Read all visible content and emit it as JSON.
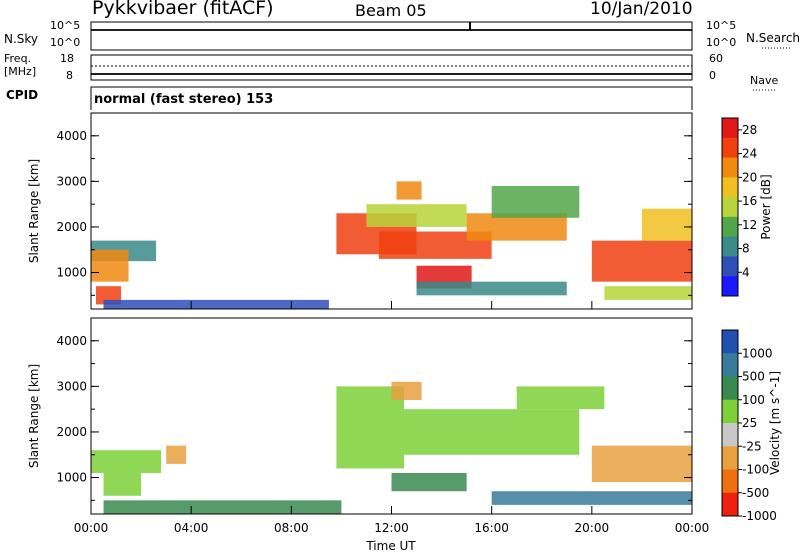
{
  "header": {
    "station": "Pykkvibaer (fitACF)",
    "beam": "Beam 05",
    "date": "10/Jan/2010"
  },
  "strips": {
    "nsky_label": "N.Sky",
    "nsky_ticks": [
      "10^5",
      "10^0"
    ],
    "nsearch_label": "N.Search",
    "nsearch_ticks": [
      "10^5",
      "10^0"
    ],
    "freq_label_line1": "Freq.",
    "freq_label_line2": "[MHz]",
    "freq_ticks": [
      "18",
      "8"
    ],
    "nave_label": "Nave",
    "nave_ticks": [
      "60",
      "0"
    ],
    "cpid_label": "CPID",
    "cpid_text": "normal (fast stereo) 153"
  },
  "chart_data": [
    {
      "type": "heatmap",
      "title": "",
      "xlabel": "Time UT",
      "ylabel": "Slant Range [km]",
      "xticks": [
        "00:00",
        "04:00",
        "08:00",
        "12:00",
        "16:00",
        "20:00",
        "00:00"
      ],
      "yticks": [
        "1000",
        "2000",
        "3000",
        "4000"
      ],
      "ylim": [
        200,
        4500
      ],
      "xlim_hours": [
        0,
        24
      ],
      "colorbar": {
        "label": "Power [dB]",
        "ticks": [
          "4",
          "8",
          "12",
          "16",
          "20",
          "24",
          "28"
        ],
        "range": [
          0,
          30
        ],
        "colors": [
          "#1a1aff",
          "#2e4fb8",
          "#3a8a8a",
          "#52a64a",
          "#b8d43a",
          "#f0c020",
          "#f08a10",
          "#f04010",
          "#e01818"
        ]
      },
      "regions": [
        {
          "t0": 0.0,
          "t1": 2.6,
          "r0": 1250,
          "r1": 1700,
          "value": 8
        },
        {
          "t0": 0.0,
          "t1": 1.5,
          "r0": 800,
          "r1": 1500,
          "value": 20
        },
        {
          "t0": 0.2,
          "t1": 1.2,
          "r0": 300,
          "r1": 700,
          "value": 26
        },
        {
          "t0": 0.5,
          "t1": 9.5,
          "r0": 200,
          "r1": 400,
          "value": 6
        },
        {
          "t0": 9.8,
          "t1": 13.0,
          "r0": 1400,
          "r1": 2300,
          "value": 26
        },
        {
          "t0": 11.5,
          "t1": 16.0,
          "r0": 1300,
          "r1": 1900,
          "value": 24
        },
        {
          "t0": 11.0,
          "t1": 15.0,
          "r0": 2000,
          "r1": 2500,
          "value": 14
        },
        {
          "t0": 12.2,
          "t1": 13.2,
          "r0": 2600,
          "r1": 3000,
          "value": 22
        },
        {
          "t0": 13.0,
          "t1": 15.2,
          "r0": 650,
          "r1": 1150,
          "value": 28
        },
        {
          "t0": 15.0,
          "t1": 19.0,
          "r0": 1700,
          "r1": 2300,
          "value": 20
        },
        {
          "t0": 16.0,
          "t1": 19.5,
          "r0": 2200,
          "r1": 2900,
          "value": 10
        },
        {
          "t0": 13.0,
          "t1": 19.0,
          "r0": 500,
          "r1": 800,
          "value": 8
        },
        {
          "t0": 20.0,
          "t1": 24.0,
          "r0": 800,
          "r1": 1700,
          "value": 26
        },
        {
          "t0": 20.5,
          "t1": 24.0,
          "r0": 400,
          "r1": 700,
          "value": 14
        },
        {
          "t0": 22.0,
          "t1": 24.0,
          "r0": 1700,
          "r1": 2400,
          "value": 18
        }
      ]
    },
    {
      "type": "heatmap",
      "title": "",
      "xlabel": "Time UT",
      "ylabel": "Slant Range [km]",
      "xticks": [
        "00:00",
        "04:00",
        "08:00",
        "12:00",
        "16:00",
        "20:00",
        "00:00"
      ],
      "yticks": [
        "1000",
        "2000",
        "3000",
        "4000"
      ],
      "ylim": [
        200,
        4500
      ],
      "xlim_hours": [
        0,
        24
      ],
      "colorbar": {
        "label": "Velocity [m s^-1]",
        "ticks": [
          "1000",
          "500",
          "100",
          "25",
          "-25",
          "-100",
          "-500",
          "-1000"
        ],
        "colors": [
          "#2050b0",
          "#3a7a9a",
          "#3a8a50",
          "#7cd038",
          "#c8c8c8",
          "#e8a040",
          "#f07010",
          "#f02010"
        ]
      },
      "regions": [
        {
          "t0": 0.0,
          "t1": 2.8,
          "r0": 1100,
          "r1": 1600,
          "value": 0
        },
        {
          "t0": 0.5,
          "t1": 2.0,
          "r0": 600,
          "r1": 1100,
          "value": 0
        },
        {
          "t0": 3.0,
          "t1": 3.8,
          "r0": 1300,
          "r1": 1700,
          "value": -200
        },
        {
          "t0": 0.5,
          "t1": 10.0,
          "r0": 200,
          "r1": 500,
          "value": 60
        },
        {
          "t0": 9.8,
          "t1": 12.5,
          "r0": 1200,
          "r1": 3000,
          "value": 0
        },
        {
          "t0": 12.5,
          "t1": 19.5,
          "r0": 1500,
          "r1": 2500,
          "value": 0
        },
        {
          "t0": 12.0,
          "t1": 13.2,
          "r0": 2700,
          "r1": 3100,
          "value": -300
        },
        {
          "t0": 12.0,
          "t1": 15.0,
          "r0": 700,
          "r1": 1100,
          "value": 60
        },
        {
          "t0": 16.0,
          "t1": 24.0,
          "r0": 400,
          "r1": 700,
          "value": 200
        },
        {
          "t0": 20.0,
          "t1": 24.0,
          "r0": 900,
          "r1": 1700,
          "value": -150
        },
        {
          "t0": 17.0,
          "t1": 20.5,
          "r0": 2500,
          "r1": 3000,
          "value": 0
        }
      ]
    }
  ]
}
